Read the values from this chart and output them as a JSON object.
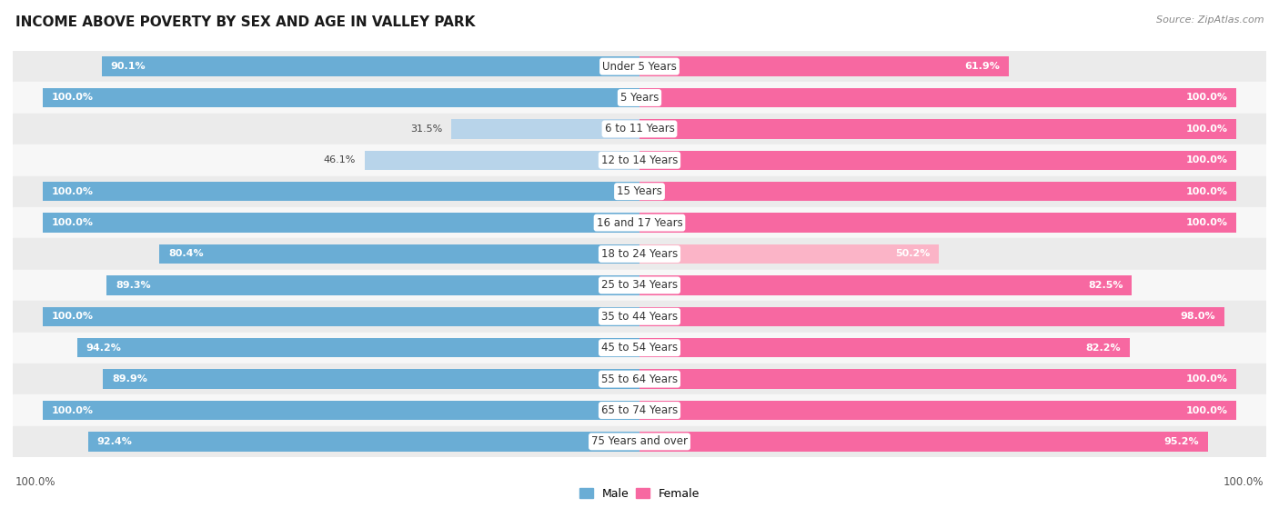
{
  "title": "INCOME ABOVE POVERTY BY SEX AND AGE IN VALLEY PARK",
  "source": "Source: ZipAtlas.com",
  "categories": [
    "Under 5 Years",
    "5 Years",
    "6 to 11 Years",
    "12 to 14 Years",
    "15 Years",
    "16 and 17 Years",
    "18 to 24 Years",
    "25 to 34 Years",
    "35 to 44 Years",
    "45 to 54 Years",
    "55 to 64 Years",
    "65 to 74 Years",
    "75 Years and over"
  ],
  "male_values": [
    90.1,
    100.0,
    31.5,
    46.1,
    100.0,
    100.0,
    80.4,
    89.3,
    100.0,
    94.2,
    89.9,
    100.0,
    92.4
  ],
  "female_values": [
    61.9,
    100.0,
    100.0,
    100.0,
    100.0,
    100.0,
    50.2,
    82.5,
    98.0,
    82.2,
    100.0,
    100.0,
    95.2
  ],
  "male_color": "#6aadd5",
  "female_color": "#f768a1",
  "male_color_light": "#b8d4ea",
  "female_color_light": "#fbb4c7",
  "male_threshold": 60,
  "female_threshold": 60,
  "bar_height": 0.62,
  "background_color": "#ffffff",
  "row_color_even": "#ebebeb",
  "row_color_odd": "#f7f7f7",
  "xlabel_bottom_left": "100.0%",
  "xlabel_bottom_right": "100.0%",
  "title_fontsize": 11,
  "label_fontsize": 8.5,
  "value_fontsize": 8,
  "legend_fontsize": 9,
  "xlim": 105
}
